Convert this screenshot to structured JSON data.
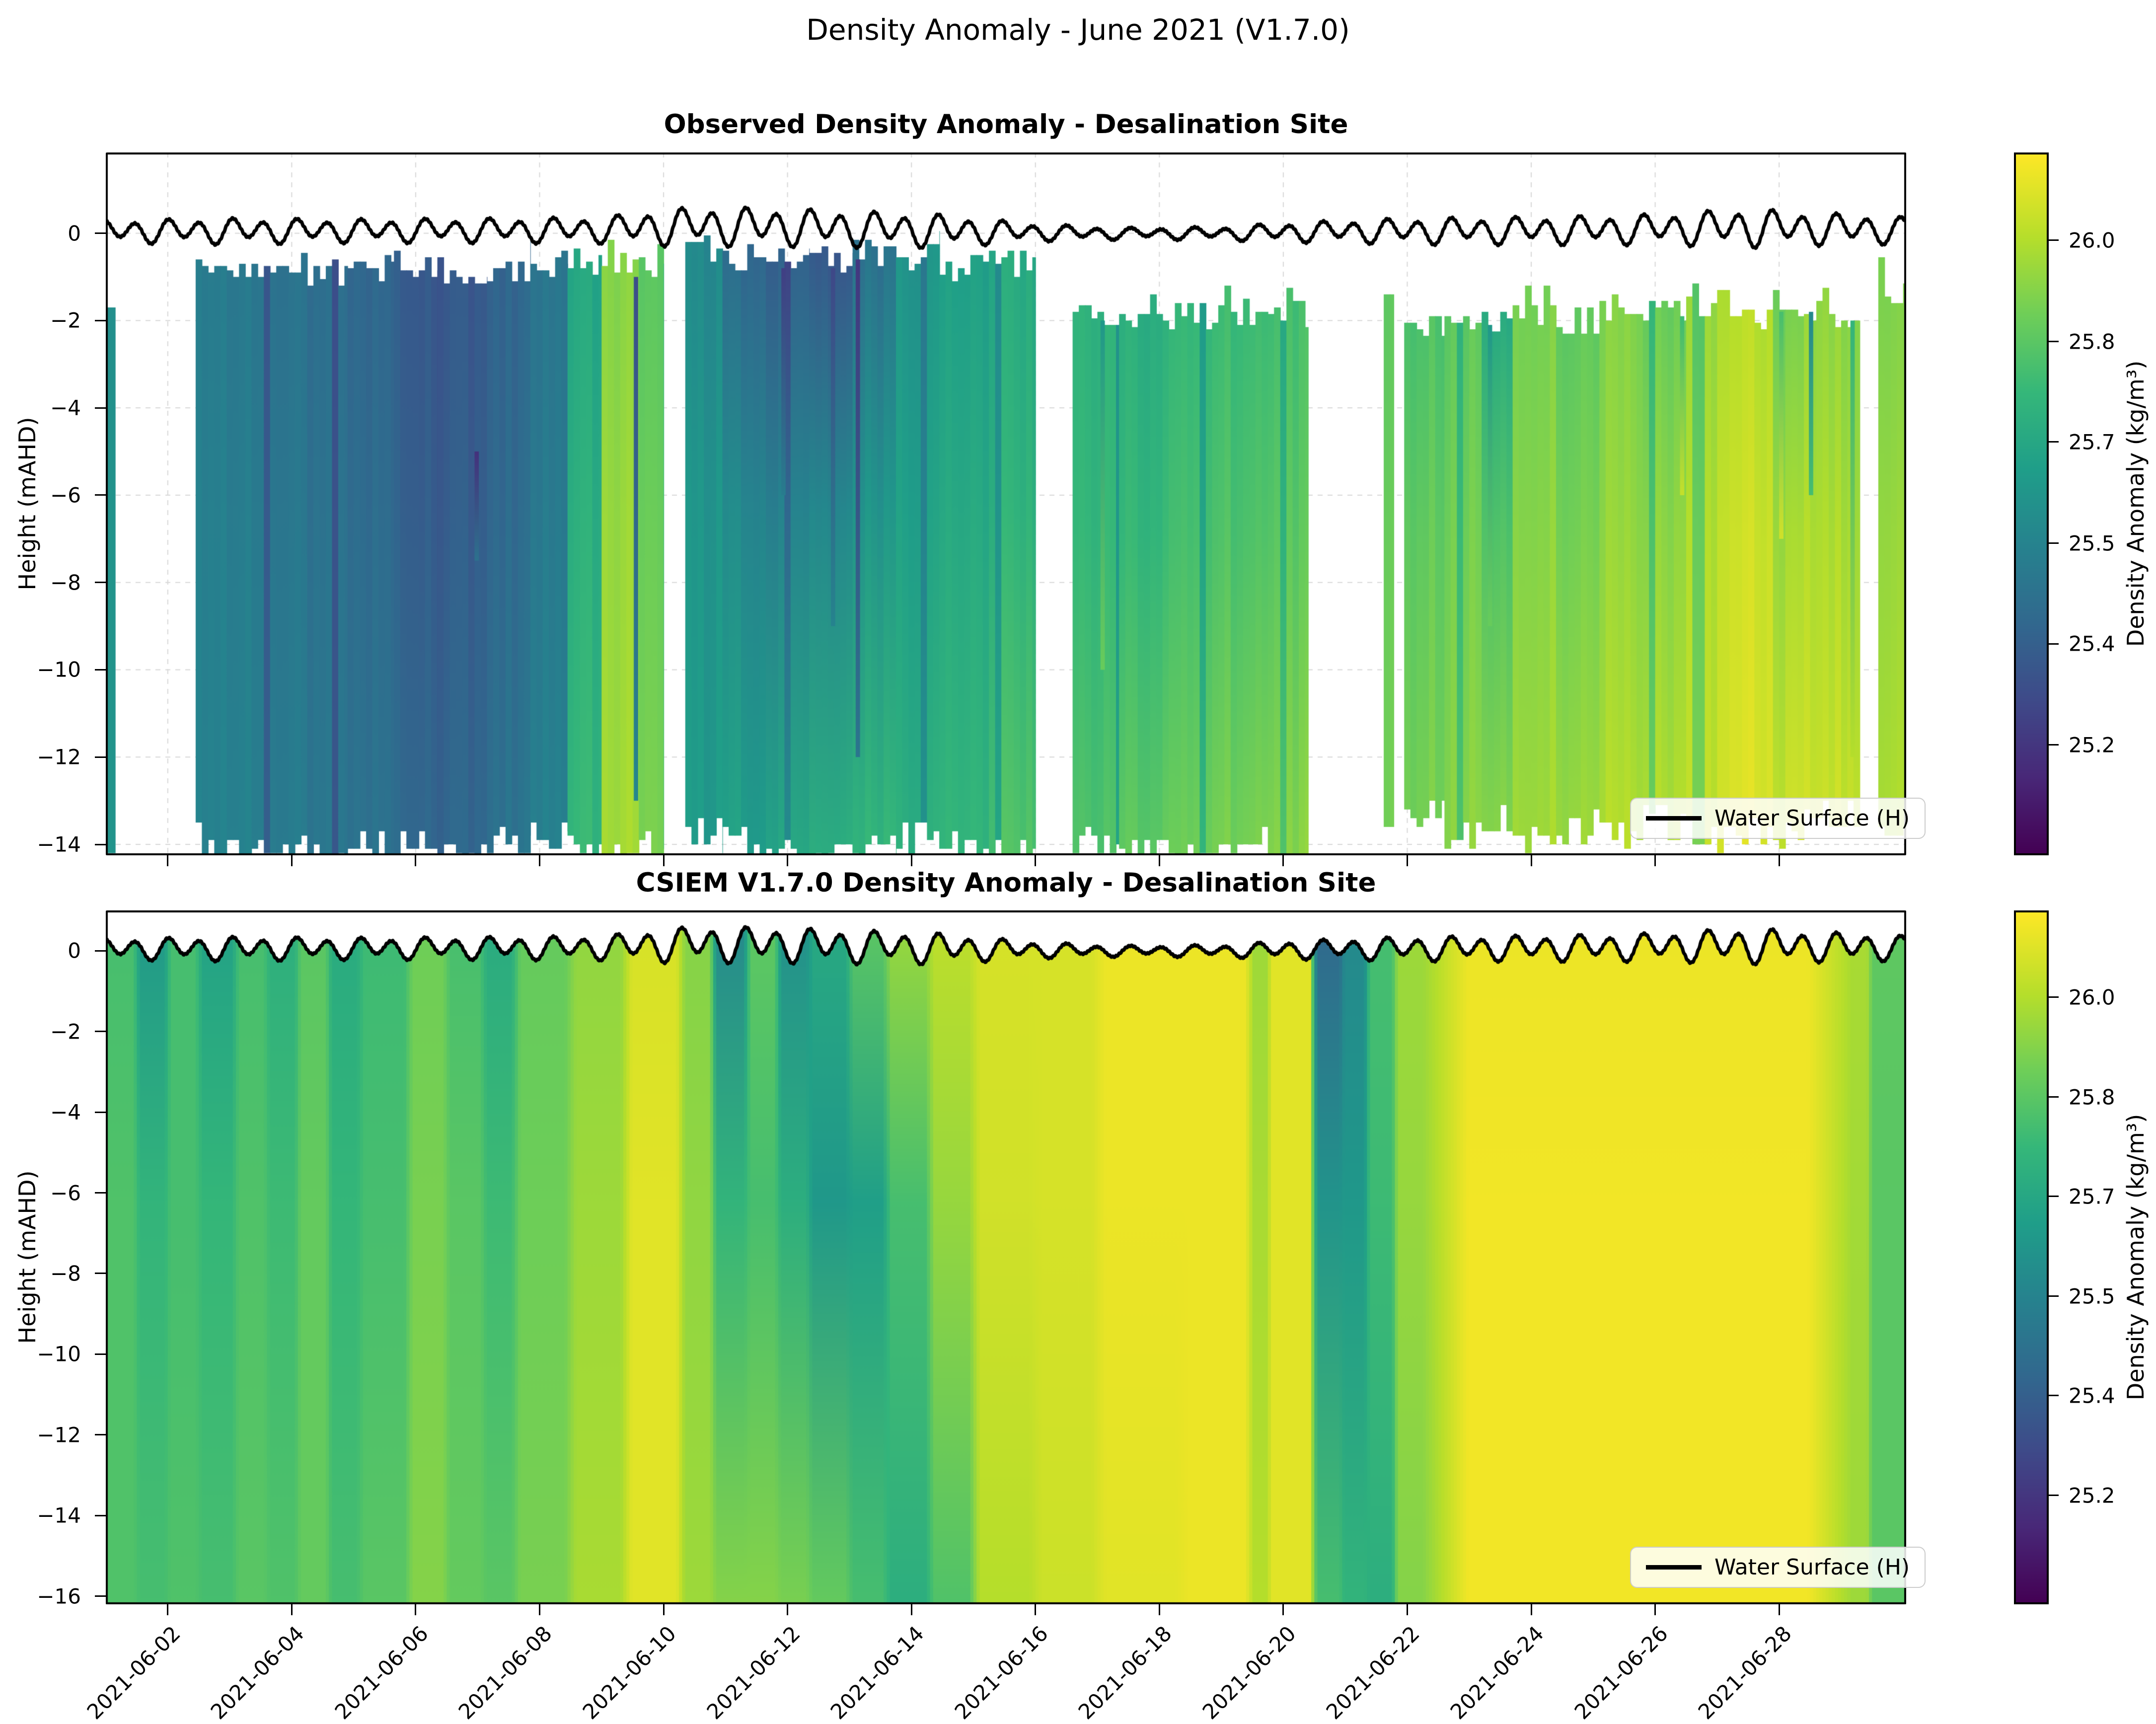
{
  "figure": {
    "title": "Density Anomaly - June 2021 (V1.7.0)"
  },
  "chart_data": {
    "type": "heatmap",
    "start_date": "2021-06-01",
    "x_axis": {
      "range_days": [
        0,
        29.05
      ],
      "tick_days": [
        1,
        3,
        5,
        7,
        9,
        11,
        13,
        15,
        17,
        19,
        21,
        23,
        25,
        27
      ],
      "tick_labels": [
        "2021-06-02",
        "2021-06-04",
        "2021-06-06",
        "2021-06-08",
        "2021-06-10",
        "2021-06-12",
        "2021-06-14",
        "2021-06-16",
        "2021-06-18",
        "2021-06-20",
        "2021-06-22",
        "2021-06-24",
        "2021-06-26",
        "2021-06-28"
      ]
    },
    "colorbar": {
      "label": "Density Anomaly (kg/m³)",
      "tick_labels": [
        "26.0",
        "25.8",
        "25.7",
        "25.5",
        "25.4",
        "25.2"
      ],
      "tick_fracs_from_top": [
        0.125,
        0.269,
        0.412,
        0.556,
        0.699,
        0.843
      ],
      "vmin": 25.05,
      "vmax": 26.13
    },
    "viridis_stops": [
      [
        0.0,
        "#440154"
      ],
      [
        0.11,
        "#482878"
      ],
      [
        0.22,
        "#3e4a89"
      ],
      [
        0.33,
        "#31688e"
      ],
      [
        0.44,
        "#26828e"
      ],
      [
        0.55,
        "#1f9e89"
      ],
      [
        0.66,
        "#35b779"
      ],
      [
        0.77,
        "#6ece58"
      ],
      [
        0.88,
        "#b5de2b"
      ],
      [
        1.0,
        "#fde725"
      ]
    ],
    "water_surface": {
      "legend_label": "Water Surface (H)",
      "semidiurnal_period_days": 0.5175,
      "diurnal_period_days": 1.035,
      "mean_level_path": [
        [
          0,
          0.05
        ],
        [
          8,
          0.08
        ],
        [
          9.5,
          0.18
        ],
        [
          11,
          0.15
        ],
        [
          14,
          0.05
        ],
        [
          16,
          0.0
        ],
        [
          18,
          0.0
        ],
        [
          20,
          0.05
        ],
        [
          24,
          0.08
        ],
        [
          26.5,
          0.14
        ],
        [
          29.05,
          0.08
        ]
      ],
      "amplitude_envelope": [
        [
          0,
          0.26
        ],
        [
          2,
          0.3
        ],
        [
          4,
          0.27
        ],
        [
          6,
          0.28
        ],
        [
          8,
          0.3
        ],
        [
          9,
          0.42
        ],
        [
          10,
          0.45
        ],
        [
          12,
          0.42
        ],
        [
          13.5,
          0.38
        ],
        [
          15,
          0.2
        ],
        [
          16.5,
          0.13
        ],
        [
          18,
          0.15
        ],
        [
          19,
          0.22
        ],
        [
          20,
          0.26
        ],
        [
          21,
          0.3
        ],
        [
          23,
          0.32
        ],
        [
          25,
          0.35
        ],
        [
          26.5,
          0.45
        ],
        [
          27.5,
          0.38
        ],
        [
          28.5,
          0.34
        ],
        [
          29.05,
          0.3
        ]
      ]
    },
    "panels": [
      {
        "id": "observed",
        "title": "Observed Density Anomaly - Desalination Site",
        "ylabel": "Height (mAHD)",
        "ylim": [
          1.85,
          -14.25
        ],
        "yticks": [
          0,
          -2,
          -4,
          -6,
          -8,
          -10,
          -12,
          -14
        ],
        "grid": true,
        "fill_to_surface": false,
        "column_format": [
          "day_start",
          "day_end",
          "top_m",
          "bottom_m",
          "value_top",
          "value_mid",
          "value_bottom"
        ],
        "columns": [
          [
            0.0,
            0.15,
            -1.7,
            -14.2,
            25.58,
            25.6,
            25.6
          ],
          [
            1.45,
            1.95,
            -0.75,
            -13.9,
            25.5,
            25.52,
            25.53
          ],
          [
            1.95,
            2.55,
            -0.85,
            -14.1,
            25.48,
            25.5,
            25.52
          ],
          [
            2.55,
            3.25,
            -0.75,
            -14.0,
            25.46,
            25.48,
            25.5
          ],
          [
            3.25,
            3.9,
            -0.9,
            -14.2,
            25.44,
            25.46,
            25.48
          ],
          [
            3.9,
            4.65,
            -0.8,
            -13.9,
            25.4,
            25.42,
            25.45
          ],
          [
            4.65,
            5.35,
            -0.7,
            -14.1,
            25.36,
            25.38,
            25.42
          ],
          [
            5.35,
            6.15,
            -0.85,
            -14.2,
            25.34,
            25.36,
            25.4
          ],
          [
            6.15,
            6.85,
            -0.8,
            -14.0,
            25.4,
            25.42,
            25.46
          ],
          [
            6.85,
            7.45,
            -0.7,
            -13.9,
            25.47,
            25.49,
            25.52
          ],
          [
            7.45,
            8.0,
            -0.65,
            -14.0,
            25.68,
            25.72,
            25.76
          ],
          [
            8.0,
            8.6,
            -0.6,
            -14.2,
            25.92,
            25.95,
            25.97
          ],
          [
            8.6,
            9.0,
            -0.7,
            -14.1,
            25.84,
            25.87,
            25.9
          ],
          [
            9.35,
            9.95,
            -0.35,
            -13.8,
            25.55,
            25.6,
            25.63
          ],
          [
            9.95,
            10.65,
            -0.55,
            -14.0,
            25.42,
            25.55,
            25.65
          ],
          [
            10.65,
            11.35,
            -0.5,
            -14.1,
            25.38,
            25.52,
            25.68
          ],
          [
            11.35,
            12.05,
            -0.6,
            -14.2,
            25.35,
            25.55,
            25.72
          ],
          [
            12.05,
            12.75,
            -0.45,
            -14.0,
            25.45,
            25.6,
            25.75
          ],
          [
            12.75,
            13.45,
            -0.55,
            -13.9,
            25.6,
            25.65,
            25.72
          ],
          [
            13.45,
            14.25,
            -0.8,
            -14.1,
            25.66,
            25.7,
            25.76
          ],
          [
            14.25,
            15.0,
            -0.7,
            -14.3,
            25.7,
            25.74,
            25.82
          ],
          [
            15.6,
            16.35,
            -1.95,
            -14.0,
            25.74,
            25.76,
            25.82
          ],
          [
            16.35,
            17.15,
            -1.85,
            -13.9,
            25.72,
            25.76,
            25.85
          ],
          [
            17.15,
            17.95,
            -1.9,
            -14.2,
            25.76,
            25.8,
            25.88
          ],
          [
            17.95,
            18.75,
            -1.8,
            -14.0,
            25.78,
            25.82,
            25.9
          ],
          [
            18.75,
            19.4,
            -1.85,
            -14.3,
            25.8,
            25.85,
            25.93
          ],
          [
            20.62,
            20.78,
            -1.4,
            -13.6,
            25.84,
            25.86,
            25.88
          ],
          [
            20.95,
            21.6,
            -2.05,
            -13.4,
            25.82,
            25.86,
            25.9
          ],
          [
            21.6,
            22.2,
            -1.9,
            -13.7,
            25.86,
            25.9,
            25.94
          ],
          [
            22.2,
            22.7,
            -2.1,
            -13.5,
            25.7,
            25.82,
            25.92
          ],
          [
            22.7,
            23.4,
            -1.95,
            -13.8,
            25.9,
            25.93,
            25.97
          ],
          [
            23.4,
            24.1,
            -2.0,
            -13.6,
            25.86,
            25.9,
            25.96
          ],
          [
            24.1,
            24.8,
            -1.7,
            -13.9,
            25.92,
            25.95,
            26.0
          ],
          [
            24.8,
            25.5,
            -1.85,
            -13.5,
            25.88,
            25.94,
            26.0
          ],
          [
            25.5,
            26.2,
            -1.6,
            -13.8,
            25.96,
            26.0,
            26.03
          ],
          [
            26.2,
            26.9,
            -1.9,
            -13.6,
            26.0,
            26.04,
            26.07
          ],
          [
            26.9,
            27.4,
            -1.75,
            -13.9,
            25.88,
            25.96,
            26.03
          ],
          [
            27.4,
            28.3,
            -2.0,
            -13.4,
            25.94,
            25.99,
            26.04
          ],
          [
            28.6,
            29.05,
            -1.3,
            -13.6,
            25.9,
            25.94,
            25.98
          ]
        ],
        "streaks_format": [
          "day",
          "top_m",
          "bottom_m",
          "value"
        ],
        "streaks": [
          [
            5.95,
            -5.0,
            -7.5,
            25.2
          ],
          [
            8.52,
            -1.0,
            -13.0,
            25.3
          ],
          [
            10.9,
            -0.8,
            -6.0,
            25.25
          ],
          [
            11.7,
            -0.8,
            -9.0,
            25.28
          ],
          [
            12.1,
            -0.6,
            -12.0,
            25.22
          ],
          [
            16.05,
            -2.0,
            -10.0,
            25.62
          ],
          [
            22.3,
            -2.1,
            -9.0,
            25.62
          ],
          [
            25.4,
            -1.9,
            -6.0,
            25.78
          ],
          [
            27.0,
            -1.8,
            -7.0,
            25.8
          ],
          [
            27.48,
            -1.8,
            -6.0,
            25.55
          ],
          [
            28.15,
            -2.0,
            -12.0,
            25.75
          ]
        ]
      },
      {
        "id": "model",
        "title": "CSIEM V1.7.0 Density Anomaly - Desalination Site",
        "ylabel": "Height (mAHD)",
        "ylim": [
          1.0,
          -16.2
        ],
        "yticks": [
          0,
          -2,
          -4,
          -6,
          -8,
          -10,
          -12,
          -14,
          -16
        ],
        "grid": false,
        "fill_to_surface": true,
        "column_format": [
          "day_start",
          "day_end",
          "value_top",
          "value_mid",
          "value_bottom"
        ],
        "columns": [
          [
            0.0,
            0.5,
            25.8,
            25.82,
            25.82
          ],
          [
            0.5,
            1.0,
            25.62,
            25.75,
            25.8
          ],
          [
            1.0,
            1.5,
            25.8,
            25.8,
            25.82
          ],
          [
            1.5,
            2.1,
            25.66,
            25.76,
            25.8
          ],
          [
            2.1,
            2.6,
            25.8,
            25.82,
            25.84
          ],
          [
            2.6,
            3.1,
            25.72,
            25.78,
            25.82
          ],
          [
            3.1,
            3.6,
            25.84,
            25.86,
            25.86
          ],
          [
            3.6,
            4.1,
            25.7,
            25.76,
            25.8
          ],
          [
            4.1,
            4.9,
            25.78,
            25.8,
            25.84
          ],
          [
            4.9,
            5.5,
            25.88,
            25.9,
            25.92
          ],
          [
            5.5,
            6.1,
            25.8,
            25.84,
            25.86
          ],
          [
            6.1,
            6.6,
            25.7,
            25.78,
            25.84
          ],
          [
            6.6,
            7.5,
            25.86,
            25.88,
            25.9
          ],
          [
            7.5,
            8.4,
            25.94,
            25.96,
            25.98
          ],
          [
            8.4,
            9.3,
            26.06,
            26.08,
            26.08
          ],
          [
            9.3,
            9.8,
            25.92,
            25.94,
            25.96
          ],
          [
            9.8,
            10.35,
            25.55,
            25.75,
            25.92
          ],
          [
            10.35,
            10.85,
            25.85,
            25.8,
            25.92
          ],
          [
            10.85,
            11.35,
            25.58,
            25.72,
            25.9
          ],
          [
            11.35,
            12.0,
            25.7,
            25.62,
            25.86
          ],
          [
            12.0,
            12.6,
            25.85,
            25.65,
            25.8
          ],
          [
            12.6,
            13.3,
            25.96,
            25.8,
            25.72
          ],
          [
            13.3,
            14.0,
            26.02,
            25.95,
            25.82
          ],
          [
            14.0,
            15.0,
            26.06,
            26.05,
            26.0
          ],
          [
            15.0,
            16.0,
            26.06,
            26.06,
            26.04
          ],
          [
            16.0,
            17.4,
            26.1,
            26.1,
            26.08
          ],
          [
            17.4,
            18.5,
            26.1,
            26.1,
            26.1
          ],
          [
            18.5,
            18.75,
            25.96,
            25.98,
            26.0
          ],
          [
            18.75,
            19.5,
            26.08,
            26.08,
            26.08
          ],
          [
            19.5,
            19.95,
            25.4,
            25.6,
            25.8
          ],
          [
            19.95,
            20.35,
            25.55,
            25.62,
            25.75
          ],
          [
            20.35,
            20.8,
            25.8,
            25.78,
            25.72
          ],
          [
            20.8,
            21.3,
            25.96,
            25.95,
            25.92
          ],
          [
            21.3,
            28.15,
            26.1,
            26.11,
            26.11
          ],
          [
            28.15,
            28.45,
            25.98,
            25.97,
            25.96
          ],
          [
            28.45,
            29.05,
            25.85,
            25.84,
            25.84
          ]
        ]
      }
    ]
  }
}
